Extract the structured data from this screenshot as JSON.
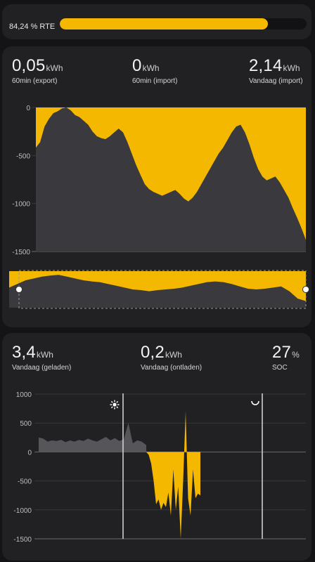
{
  "rte": {
    "label": "84,24 % RTE",
    "value": 84.24,
    "color": "#f4b800"
  },
  "grid": {
    "stats": [
      {
        "value": "0,05",
        "unit": "kWh",
        "label": "60min (export)"
      },
      {
        "value": "0",
        "unit": "kWh",
        "label": "60min (import)"
      },
      {
        "value": "2,14",
        "unit": "kWh",
        "label": "Vandaag (import)"
      }
    ]
  },
  "battery": {
    "stats": [
      {
        "value": "3,4",
        "unit": "kWh",
        "label": "Vandaag (geladen)"
      },
      {
        "value": "0,2",
        "unit": "kWh",
        "label": "Vandaag (ontladen)"
      },
      {
        "value": "27",
        "unit": "%",
        "label": "SOC"
      }
    ],
    "sunrise_icon": "sun-icon",
    "sunset_icon": "moon-icon"
  },
  "colors": {
    "accent": "#f4b800",
    "background": "#212124",
    "series_gray": "#3a3a3e"
  },
  "chart_data": [
    {
      "type": "area",
      "ylim": [
        -1500,
        0
      ],
      "yticks": [
        0,
        -500,
        -1000,
        -1500
      ],
      "yticklabels": [
        "0",
        "-500",
        "-1000",
        "-1500"
      ],
      "series": [
        {
          "values": [
            -420,
            -360,
            -200,
            -120,
            -60,
            -40,
            -10,
            0,
            -30,
            -80,
            -100,
            -140,
            -180,
            -250,
            -300,
            -320,
            -330,
            -300,
            -260,
            -220,
            -260,
            -360,
            -480,
            -600,
            -700,
            -800,
            -850,
            -880,
            -900,
            -920,
            -900,
            -880,
            -860,
            -900,
            -950,
            -980,
            -940,
            -880,
            -800,
            -720,
            -640,
            -560,
            -480,
            -420,
            -340,
            -260,
            -200,
            -180,
            -260,
            -380,
            -520,
            -640,
            -720,
            -760,
            -740,
            -720,
            -780,
            -860,
            -940,
            -1050,
            -1150,
            -1260,
            -1380
          ]
        }
      ],
      "navigator": {
        "values": [
          -0.45,
          -0.35,
          -0.25,
          -0.2,
          -0.15,
          -0.12,
          -0.1,
          -0.15,
          -0.2,
          -0.25,
          -0.28,
          -0.3,
          -0.35,
          -0.4,
          -0.45,
          -0.5,
          -0.52,
          -0.55,
          -0.52,
          -0.5,
          -0.48,
          -0.45,
          -0.4,
          -0.35,
          -0.3,
          -0.28,
          -0.3,
          -0.35,
          -0.42,
          -0.48,
          -0.5,
          -0.48,
          -0.45,
          -0.42,
          -0.55,
          -0.75,
          -0.82
        ]
      }
    },
    {
      "type": "area",
      "ylim": [
        -1500,
        1000
      ],
      "yticks": [
        1000,
        500,
        0,
        -500,
        -1000,
        -1500
      ],
      "yticklabels": [
        "1000",
        "500",
        "0",
        "-500",
        "-1000",
        "-1500"
      ],
      "series": [
        {
          "values": [
            250,
            230,
            180,
            200,
            190,
            210,
            170,
            200,
            180,
            210,
            190,
            230,
            200,
            180,
            220,
            260,
            200,
            240,
            190,
            220,
            500,
            150,
            200,
            180,
            120
          ]
        },
        {
          "values": [
            0,
            -50,
            -200,
            -500,
            -900,
            -820,
            -1000,
            -880,
            -950,
            -700,
            -1100,
            -300,
            -1000,
            -600,
            -1500,
            -500,
            700,
            -800,
            -1100,
            -300,
            -800,
            -720,
            -750
          ]
        }
      ],
      "annotations": [
        "sunrise",
        "sunset"
      ]
    }
  ]
}
